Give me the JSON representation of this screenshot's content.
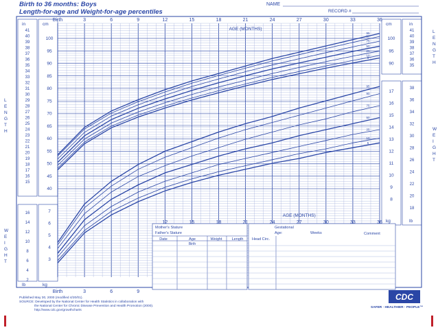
{
  "header": {
    "title_line1": "Birth to 36 months: Boys",
    "title_line2": "Length-for-age and Weight-for-age percentiles",
    "name_label": "NAME",
    "record_label": "RECORD #"
  },
  "axis_labels": {
    "length_vertical": "LENGTH",
    "weight_vertical": "WEIGHT",
    "age_months": "AGE (MONTHS)",
    "in_unit": "in",
    "cm_unit": "cm",
    "kg_unit": "kg",
    "lb_unit": "lb",
    "birth": "Birth"
  },
  "top_age_ticks": [
    "Birth",
    "3",
    "6",
    "9",
    "12",
    "15",
    "18",
    "21",
    "24",
    "27",
    "30",
    "33",
    "36"
  ],
  "mid_age_ticks": [
    "12",
    "15",
    "18",
    "21",
    "24",
    "27",
    "30",
    "33",
    "36"
  ],
  "bottom_age_ticks": [
    "Birth",
    "3",
    "6",
    "9"
  ],
  "inch_ticks_left": [
    "41",
    "40",
    "39",
    "38",
    "37",
    "36",
    "35",
    "34",
    "33",
    "32",
    "31",
    "30",
    "29",
    "28",
    "27",
    "26",
    "25",
    "24",
    "23",
    "22",
    "21",
    "20",
    "19",
    "18",
    "17",
    "16",
    "15"
  ],
  "cm_ticks_left": [
    "100",
    "95",
    "90",
    "85",
    "80",
    "75",
    "70",
    "65",
    "60",
    "55",
    "50",
    "45",
    "40"
  ],
  "lb_ticks_left": [
    "16",
    "14",
    "12",
    "10",
    "8",
    "6",
    "4",
    "2"
  ],
  "kg_ticks_left": [
    "7",
    "6",
    "5",
    "4",
    "3"
  ],
  "cm_ticks_right": [
    "100",
    "95",
    "90"
  ],
  "inch_ticks_right": [
    "41",
    "40",
    "39",
    "38",
    "37",
    "36",
    "35"
  ],
  "kg_ticks_right": [
    "17",
    "16",
    "15",
    "14",
    "13",
    "12",
    "11",
    "10",
    "9",
    "8"
  ],
  "lb_ticks_right": [
    "38",
    "36",
    "34",
    "32",
    "30",
    "28",
    "26",
    "24",
    "22",
    "20",
    "18"
  ],
  "percentile_labels": [
    "95",
    "90",
    "75",
    "50",
    "25",
    "10",
    "5"
  ],
  "record_table": {
    "mothers_stature": "Mother's Stature",
    "fathers_stature": "Father's Stature",
    "gestational": "Gestational",
    "age": "Age:",
    "weeks": "Weeks",
    "comment": "Comment",
    "columns": [
      "Date",
      "Age",
      "Weight",
      "Length",
      "Head Circ."
    ],
    "birth_row": "Birth"
  },
  "footer": {
    "published": "Published May 30, 2000 (modified 4/20/01).",
    "source": "SOURCE: Developed by the National Center for Health Statistics in collaboration with",
    "source2": "the National Center for Chronic Disease Prevention and Health Promotion (2000).",
    "url": "http://www.cdc.gov/growthcharts",
    "logo": "CDC",
    "slogan": "SAFER · HEALTHIER · PEOPLE™"
  },
  "colors": {
    "ink": "#2a46a6",
    "grid_light": "#9aa8d8",
    "accent_red": "#c0202a"
  },
  "chart_data": [
    {
      "type": "line",
      "title": "Length-for-age percentiles",
      "xlabel": "AGE (MONTHS)",
      "ylabel": "LENGTH (cm)",
      "x": [
        0,
        3,
        6,
        9,
        12,
        15,
        18,
        21,
        24,
        27,
        30,
        33,
        36
      ],
      "xlim": [
        0,
        36
      ],
      "ylim": [
        40,
        104
      ],
      "series": [
        {
          "name": "95",
          "values": [
            53.5,
            64.5,
            71.0,
            75.5,
            79.5,
            83.0,
            86.0,
            89.0,
            92.0,
            94.5,
            97.0,
            99.5,
            102.0
          ]
        },
        {
          "name": "90",
          "values": [
            53.0,
            63.8,
            70.2,
            74.7,
            78.6,
            82.1,
            85.2,
            88.1,
            91.0,
            93.5,
            96.0,
            98.4,
            100.8
          ]
        },
        {
          "name": "75",
          "values": [
            51.8,
            62.5,
            69.0,
            73.5,
            77.3,
            80.8,
            83.8,
            86.7,
            89.4,
            91.9,
            94.3,
            96.6,
            98.9
          ]
        },
        {
          "name": "50",
          "values": [
            50.5,
            61.1,
            67.6,
            72.1,
            75.8,
            79.2,
            82.3,
            85.1,
            87.8,
            90.2,
            92.5,
            94.8,
            96.9
          ]
        },
        {
          "name": "25",
          "values": [
            49.3,
            59.8,
            66.2,
            70.6,
            74.3,
            77.6,
            80.6,
            83.3,
            86.0,
            88.4,
            90.7,
            92.9,
            95.0
          ]
        },
        {
          "name": "10",
          "values": [
            48.2,
            58.6,
            65.0,
            69.4,
            73.0,
            76.2,
            79.1,
            81.8,
            84.4,
            86.8,
            89.0,
            91.2,
            93.2
          ]
        },
        {
          "name": "5",
          "values": [
            47.5,
            57.9,
            64.3,
            68.6,
            72.2,
            75.4,
            78.3,
            81.0,
            83.6,
            85.9,
            88.1,
            90.2,
            92.2
          ]
        }
      ]
    },
    {
      "type": "line",
      "title": "Weight-for-age percentiles",
      "xlabel": "AGE (MONTHS)",
      "ylabel": "WEIGHT (kg)",
      "x": [
        0,
        3,
        6,
        9,
        12,
        15,
        18,
        21,
        24,
        27,
        30,
        33,
        36
      ],
      "xlim": [
        0,
        36
      ],
      "ylim": [
        1,
        18
      ],
      "series": [
        {
          "name": "95",
          "values": [
            4.4,
            7.6,
            9.5,
            10.9,
            12.0,
            12.8,
            13.6,
            14.3,
            14.9,
            15.6,
            16.2,
            16.8,
            17.4
          ]
        },
        {
          "name": "90",
          "values": [
            4.2,
            7.3,
            9.1,
            10.5,
            11.5,
            12.3,
            13.1,
            13.8,
            14.4,
            15.0,
            15.6,
            16.2,
            16.8
          ]
        },
        {
          "name": "75",
          "values": [
            3.9,
            6.8,
            8.6,
            9.9,
            10.8,
            11.6,
            12.3,
            13.0,
            13.6,
            14.2,
            14.7,
            15.3,
            15.8
          ]
        },
        {
          "name": "50",
          "values": [
            3.5,
            6.3,
            8.0,
            9.2,
            10.2,
            10.9,
            11.6,
            12.2,
            12.7,
            13.3,
            13.8,
            14.3,
            14.8
          ]
        },
        {
          "name": "25",
          "values": [
            3.2,
            5.8,
            7.4,
            8.6,
            9.5,
            10.2,
            10.9,
            11.4,
            11.9,
            12.4,
            12.9,
            13.4,
            13.8
          ]
        },
        {
          "name": "10",
          "values": [
            2.9,
            5.4,
            7.0,
            8.1,
            9.0,
            9.7,
            10.3,
            10.8,
            11.3,
            11.8,
            12.2,
            12.7,
            13.1
          ]
        },
        {
          "name": "5",
          "values": [
            2.7,
            5.2,
            6.7,
            7.8,
            8.7,
            9.4,
            10.0,
            10.5,
            11.0,
            11.4,
            11.9,
            12.3,
            12.7
          ]
        }
      ]
    }
  ]
}
